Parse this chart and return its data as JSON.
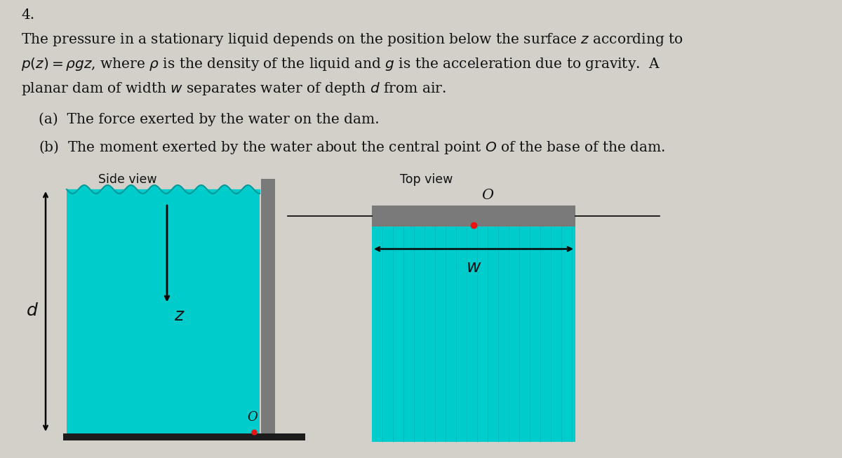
{
  "bg_color": "#d3d0ca",
  "water_color": "#00cccc",
  "dam_color": "#7a7a7a",
  "ground_color": "#1c1c1c",
  "text_color": "#111111",
  "red_dot_color": "#ee1111",
  "title_number": "4.",
  "line1": "The pressure in a stationary liquid depends on the position below the surface $z$ according to",
  "line2": "$p(z) = \\rho gz$, where $\\rho$ is the density of the liquid and $g$ is the acceleration due to gravity.  A",
  "line3": "planar dam of width $w$ separates water of depth $d$ from air.",
  "part_a": "(a)  The force exerted by the water on the dam.",
  "part_b": "(b)  The moment exerted by the water about the central point $O$ of the base of the dam.",
  "side_view_label": "Side view",
  "top_view_label": "Top view",
  "label_d": "$d$",
  "label_z": "$z$",
  "label_w": "$w$",
  "label_O_side": "O",
  "label_O_top": "O",
  "fs_text": 14.5,
  "fs_view": 12.5,
  "fs_italic": 18
}
